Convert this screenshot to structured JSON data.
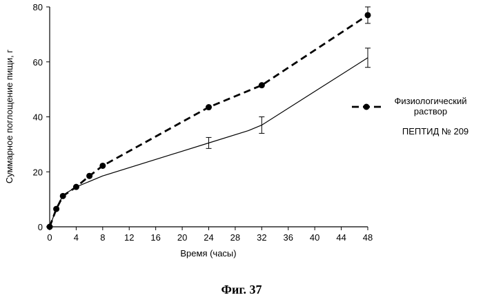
{
  "figure_caption": "Фиг. 37",
  "chart_data": {
    "type": "line",
    "xlabel": "Время (часы)",
    "ylabel": "Суммарное поглощение пищи, г",
    "xlim": [
      0,
      48
    ],
    "ylim": [
      0,
      80
    ],
    "xticks": [
      0,
      4,
      8,
      12,
      16,
      20,
      24,
      28,
      32,
      36,
      40,
      44,
      48
    ],
    "yticks": [
      0,
      20,
      40,
      60,
      80
    ],
    "grid": false,
    "legend_position": "right",
    "series": [
      {
        "name": "Физиологический раствор",
        "legend_lines": [
          "Физиологический",
          "раствор"
        ],
        "style": "dashed",
        "marker": "circle",
        "color": "#000000",
        "x": [
          0,
          1,
          2,
          4,
          6,
          8,
          24,
          32,
          48
        ],
        "y": [
          0,
          6.5,
          11.2,
          14.5,
          18.5,
          22.2,
          43.5,
          51.5,
          77
        ],
        "error": [
          0,
          0,
          0,
          0,
          0,
          0,
          0,
          0,
          3
        ]
      },
      {
        "name": "ПЕПТИД № 209",
        "legend_lines": [
          "ПЕПТИД №  209"
        ],
        "style": "solid",
        "marker": "none",
        "color": "#000000",
        "x": [
          0,
          1,
          2,
          4,
          8,
          24,
          30,
          32,
          48
        ],
        "y": [
          0,
          6.5,
          11.5,
          14.5,
          18.5,
          30.5,
          35,
          37,
          61.5
        ],
        "error": [
          0,
          0,
          0,
          0,
          0,
          2,
          0,
          3,
          3.5
        ]
      }
    ]
  }
}
